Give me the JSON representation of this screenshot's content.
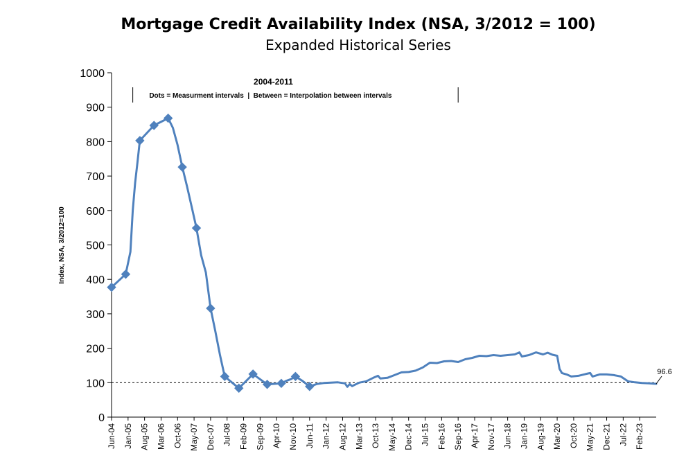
{
  "chart_data": {
    "type": "line",
    "title": "Mortgage Credit Availability Index (NSA, 3/2012 = 100)",
    "subtitle": "Expanded Historical Series",
    "ylabel": "Index, NSA, 3/2012=100",
    "xlabel": "",
    "ylim": [
      0,
      1000
    ],
    "yticks": [
      0,
      100,
      200,
      300,
      400,
      500,
      600,
      700,
      800,
      900,
      1000
    ],
    "grid": false,
    "legend": "none",
    "line_color": "#4F81BD",
    "reference_line": {
      "y": 100,
      "style": "dashed",
      "color": "#000000"
    },
    "annotation": {
      "title": "2004-2011",
      "text": "Dots = Measurment intervals  |  Between = Interpolation between intervals",
      "x_start": "Mar-05",
      "x_end": "Sep-16"
    },
    "last_value_label": {
      "x": "Sep-23",
      "y": 96.6,
      "text": "96.6"
    },
    "x_tick_labels": [
      "Jun-04",
      "Jan-05",
      "Aug-05",
      "Mar-06",
      "Oct-06",
      "May-07",
      "Dec-07",
      "Jul-08",
      "Feb-09",
      "Sep-09",
      "Apr-10",
      "Nov-10",
      "Jun-11",
      "Jan-12",
      "Aug-12",
      "Mar-13",
      "Oct-13",
      "May-14",
      "Dec-14",
      "Jul-15",
      "Feb-16",
      "Sep-16",
      "Apr-17",
      "Nov-17",
      "Jun-18",
      "Jan-19",
      "Aug-19",
      "Mar-20",
      "Oct-20",
      "May-21",
      "Dec-21",
      "Jul-22",
      "Feb-23"
    ],
    "x_range": [
      "Jun-04",
      "Sep-23"
    ],
    "measurement_points": [
      {
        "x": "Jun-04",
        "y": 377
      },
      {
        "x": "Dec-04",
        "y": 415
      },
      {
        "x": "Jun-05",
        "y": 803
      },
      {
        "x": "Dec-05",
        "y": 847
      },
      {
        "x": "Jun-06",
        "y": 868
      },
      {
        "x": "Dec-06",
        "y": 726
      },
      {
        "x": "Jun-07",
        "y": 549
      },
      {
        "x": "Dec-07",
        "y": 316
      },
      {
        "x": "Jun-08",
        "y": 118
      },
      {
        "x": "Dec-08",
        "y": 84
      },
      {
        "x": "Jun-09",
        "y": 125
      },
      {
        "x": "Dec-09",
        "y": 95
      },
      {
        "x": "Jun-10",
        "y": 98
      },
      {
        "x": "Dec-10",
        "y": 118
      },
      {
        "x": "Jun-11",
        "y": 89
      }
    ],
    "series": [
      {
        "values": [
          {
            "x": "Jun-04",
            "y": 377
          },
          {
            "x": "Dec-04",
            "y": 415
          },
          {
            "x": "Feb-05",
            "y": 480
          },
          {
            "x": "Mar-05",
            "y": 600
          },
          {
            "x": "Apr-05",
            "y": 680
          },
          {
            "x": "May-05",
            "y": 740
          },
          {
            "x": "Jun-05",
            "y": 803
          },
          {
            "x": "Dec-05",
            "y": 847
          },
          {
            "x": "Jun-06",
            "y": 868
          },
          {
            "x": "Aug-06",
            "y": 840
          },
          {
            "x": "Oct-06",
            "y": 790
          },
          {
            "x": "Dec-06",
            "y": 726
          },
          {
            "x": "Feb-07",
            "y": 670
          },
          {
            "x": "Apr-07",
            "y": 610
          },
          {
            "x": "Jun-07",
            "y": 549
          },
          {
            "x": "Aug-07",
            "y": 470
          },
          {
            "x": "Oct-07",
            "y": 420
          },
          {
            "x": "Dec-07",
            "y": 316
          },
          {
            "x": "Feb-08",
            "y": 250
          },
          {
            "x": "Apr-08",
            "y": 180
          },
          {
            "x": "Jun-08",
            "y": 118
          },
          {
            "x": "Dec-08",
            "y": 84
          },
          {
            "x": "Jun-09",
            "y": 125
          },
          {
            "x": "Dec-09",
            "y": 95
          },
          {
            "x": "Jun-10",
            "y": 98
          },
          {
            "x": "Aug-10",
            "y": 105
          },
          {
            "x": "Oct-10",
            "y": 110
          },
          {
            "x": "Dec-10",
            "y": 118
          },
          {
            "x": "Mar-11",
            "y": 105
          },
          {
            "x": "Jun-11",
            "y": 89
          },
          {
            "x": "Sep-11",
            "y": 96
          },
          {
            "x": "Dec-11",
            "y": 99
          },
          {
            "x": "Mar-12",
            "y": 100
          },
          {
            "x": "Jun-12",
            "y": 101
          },
          {
            "x": "Sep-12",
            "y": 98
          },
          {
            "x": "Oct-12",
            "y": 88
          },
          {
            "x": "Nov-12",
            "y": 96
          },
          {
            "x": "Dec-12",
            "y": 90
          },
          {
            "x": "Mar-13",
            "y": 100
          },
          {
            "x": "Jun-13",
            "y": 104
          },
          {
            "x": "Sep-13",
            "y": 114
          },
          {
            "x": "Nov-13",
            "y": 120
          },
          {
            "x": "Dec-13",
            "y": 112
          },
          {
            "x": "Mar-14",
            "y": 114
          },
          {
            "x": "Jun-14",
            "y": 122
          },
          {
            "x": "Sep-14",
            "y": 130
          },
          {
            "x": "Dec-14",
            "y": 131
          },
          {
            "x": "Mar-15",
            "y": 135
          },
          {
            "x": "Jun-15",
            "y": 144
          },
          {
            "x": "Sep-15",
            "y": 158
          },
          {
            "x": "Dec-15",
            "y": 157
          },
          {
            "x": "Mar-16",
            "y": 162
          },
          {
            "x": "Jun-16",
            "y": 163
          },
          {
            "x": "Sep-16",
            "y": 160
          },
          {
            "x": "Dec-16",
            "y": 168
          },
          {
            "x": "Mar-17",
            "y": 172
          },
          {
            "x": "Jun-17",
            "y": 178
          },
          {
            "x": "Sep-17",
            "y": 177
          },
          {
            "x": "Dec-17",
            "y": 180
          },
          {
            "x": "Mar-18",
            "y": 178
          },
          {
            "x": "Jun-18",
            "y": 180
          },
          {
            "x": "Sep-18",
            "y": 182
          },
          {
            "x": "Nov-18",
            "y": 188
          },
          {
            "x": "Dec-18",
            "y": 176
          },
          {
            "x": "Mar-19",
            "y": 180
          },
          {
            "x": "Jun-19",
            "y": 188
          },
          {
            "x": "Sep-19",
            "y": 182
          },
          {
            "x": "Nov-19",
            "y": 187
          },
          {
            "x": "Jan-20",
            "y": 181
          },
          {
            "x": "Mar-20",
            "y": 178
          },
          {
            "x": "Apr-20",
            "y": 140
          },
          {
            "x": "May-20",
            "y": 128
          },
          {
            "x": "Jul-20",
            "y": 124
          },
          {
            "x": "Sep-20",
            "y": 118
          },
          {
            "x": "Dec-20",
            "y": 120
          },
          {
            "x": "Mar-21",
            "y": 125
          },
          {
            "x": "May-21",
            "y": 128
          },
          {
            "x": "Jun-21",
            "y": 118
          },
          {
            "x": "Sep-21",
            "y": 124
          },
          {
            "x": "Dec-21",
            "y": 124
          },
          {
            "x": "Mar-22",
            "y": 122
          },
          {
            "x": "Jun-22",
            "y": 118
          },
          {
            "x": "Sep-22",
            "y": 104
          },
          {
            "x": "Dec-22",
            "y": 101
          },
          {
            "x": "Mar-23",
            "y": 99
          },
          {
            "x": "Jun-23",
            "y": 98
          },
          {
            "x": "Sep-23",
            "y": 96.6
          }
        ]
      }
    ]
  }
}
